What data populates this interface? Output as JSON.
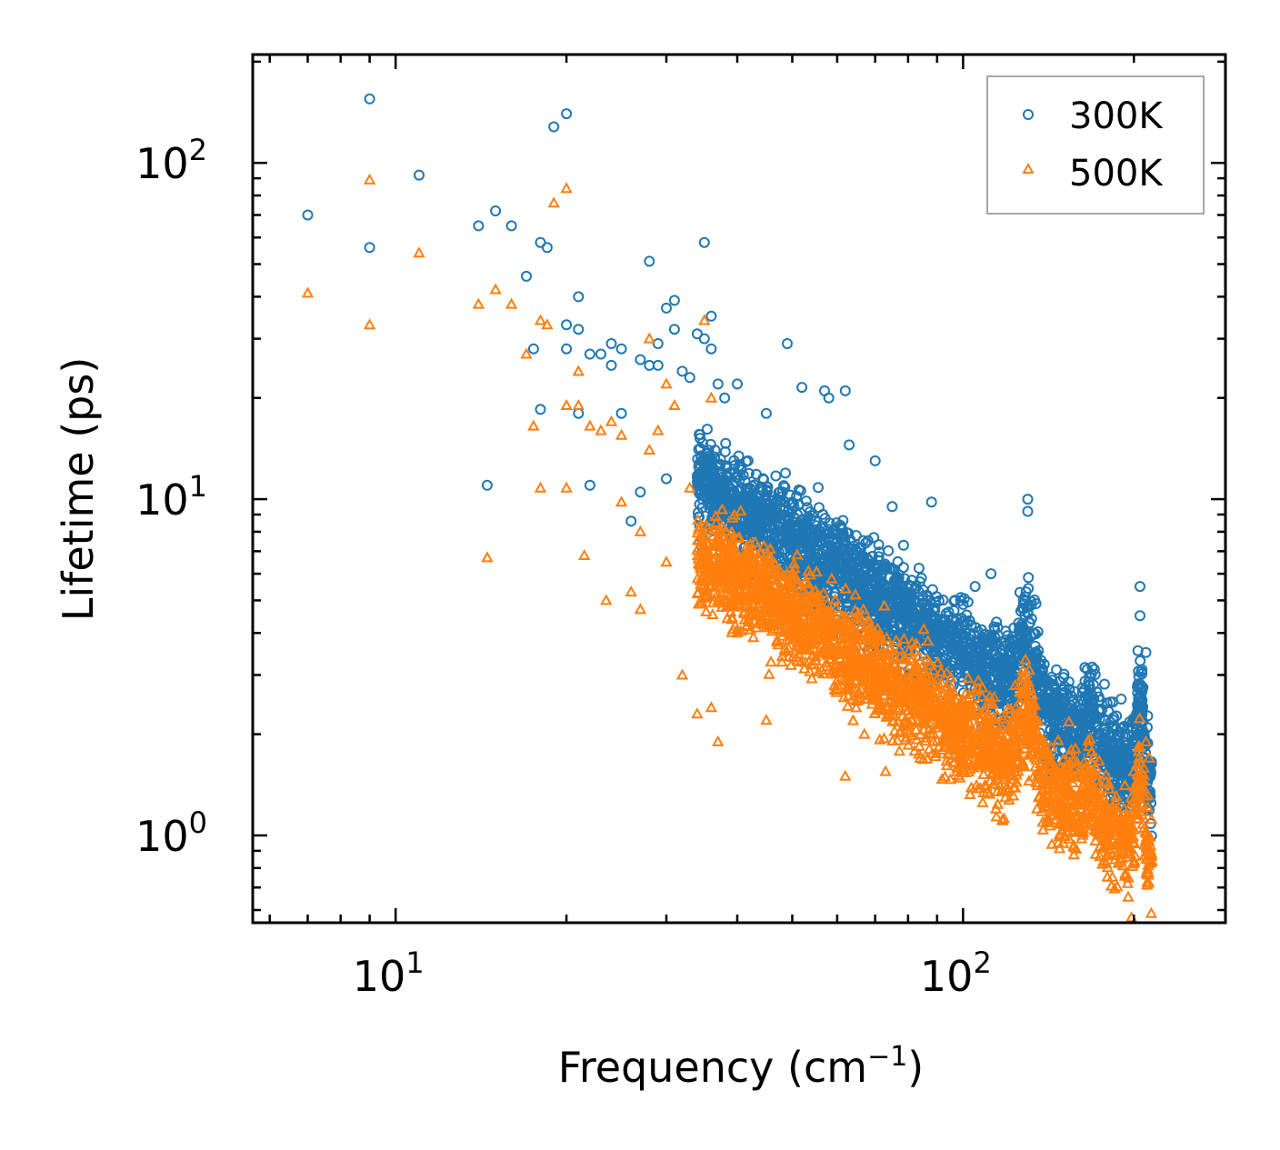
{
  "chart_data": {
    "type": "scatter",
    "xscale": "log",
    "yscale": "log",
    "xlabel": "Frequency (cm",
    "xlabel_sup": "−1",
    "xlabel_end": ")",
    "ylabel": "Lifetime (ps)",
    "xlim": [
      5.6,
      290
    ],
    "ylim": [
      0.55,
      210
    ],
    "xticks": [
      {
        "value": 10,
        "base": "10",
        "exp": "1"
      },
      {
        "value": 100,
        "base": "10",
        "exp": "2"
      }
    ],
    "yticks": [
      {
        "value": 1,
        "base": "10",
        "exp": "0"
      },
      {
        "value": 10,
        "base": "10",
        "exp": "1"
      },
      {
        "value": 100,
        "base": "10",
        "exp": "2"
      }
    ],
    "legend": {
      "position": "top-right"
    },
    "series": [
      {
        "name": "300K",
        "marker": "circle",
        "color": "#1f77b4",
        "points": [
          [
            7,
            70
          ],
          [
            9,
            56
          ],
          [
            9,
            155
          ],
          [
            11,
            92
          ],
          [
            14,
            65
          ],
          [
            14.5,
            11
          ],
          [
            15,
            72
          ],
          [
            16,
            65
          ],
          [
            17,
            46
          ],
          [
            17.5,
            28
          ],
          [
            18,
            58
          ],
          [
            18,
            18.5
          ],
          [
            18.5,
            56
          ],
          [
            19,
            128
          ],
          [
            20,
            140
          ],
          [
            20,
            33
          ],
          [
            20,
            28
          ],
          [
            21,
            40
          ],
          [
            21,
            32
          ],
          [
            21,
            18
          ],
          [
            22,
            27
          ],
          [
            22,
            11
          ],
          [
            23,
            27
          ],
          [
            24,
            29
          ],
          [
            24,
            25
          ],
          [
            25,
            28
          ],
          [
            25,
            18
          ],
          [
            26,
            8.6
          ],
          [
            27,
            26
          ],
          [
            27,
            10.5
          ],
          [
            28,
            25
          ],
          [
            28,
            51
          ],
          [
            29,
            29
          ],
          [
            29,
            25
          ],
          [
            30,
            37
          ],
          [
            30,
            11.5
          ],
          [
            31,
            32
          ],
          [
            31,
            39
          ],
          [
            32,
            24
          ],
          [
            33,
            23
          ],
          [
            34,
            31
          ],
          [
            35,
            30
          ],
          [
            35,
            58
          ],
          [
            36,
            35
          ],
          [
            36,
            28
          ],
          [
            37,
            22
          ],
          [
            38,
            20
          ],
          [
            40,
            22
          ],
          [
            45,
            18
          ],
          [
            49,
            29
          ],
          [
            52,
            21.5
          ],
          [
            57,
            21
          ],
          [
            58,
            20
          ],
          [
            62,
            21
          ],
          [
            63,
            14.5
          ],
          [
            70,
            13
          ],
          [
            75,
            9.5
          ],
          [
            88,
            9.8
          ],
          [
            105,
            5.5
          ],
          [
            112,
            6
          ],
          [
            130,
            10
          ],
          [
            130,
            9.2
          ],
          [
            205,
            5.5
          ],
          [
            205,
            4.5
          ],
          [
            210,
            3.5
          ]
        ]
      },
      {
        "name": "500K",
        "marker": "triangle",
        "color": "#ff7f0e",
        "points": [
          [
            7,
            41
          ],
          [
            9,
            89
          ],
          [
            9,
            33
          ],
          [
            11,
            54
          ],
          [
            14,
            38
          ],
          [
            14.5,
            6.7
          ],
          [
            15,
            42
          ],
          [
            16,
            38
          ],
          [
            17,
            27
          ],
          [
            17.5,
            16.5
          ],
          [
            18,
            34
          ],
          [
            18,
            10.8
          ],
          [
            18.5,
            33
          ],
          [
            19,
            76
          ],
          [
            20,
            84
          ],
          [
            20,
            19
          ],
          [
            20,
            10.8
          ],
          [
            21,
            24
          ],
          [
            21,
            19
          ],
          [
            21.5,
            6.8
          ],
          [
            22,
            16.5
          ],
          [
            23,
            16
          ],
          [
            23.5,
            5
          ],
          [
            24,
            17
          ],
          [
            25,
            9.8
          ],
          [
            25,
            15.5
          ],
          [
            26,
            5.3
          ],
          [
            27,
            8
          ],
          [
            27,
            4.7
          ],
          [
            28,
            14
          ],
          [
            28,
            30
          ],
          [
            29,
            16
          ],
          [
            30,
            6.5
          ],
          [
            30,
            22
          ],
          [
            31,
            19
          ],
          [
            32,
            3
          ],
          [
            33,
            10.8
          ],
          [
            34,
            2.3
          ],
          [
            35,
            34
          ],
          [
            36,
            2.4
          ],
          [
            36,
            20
          ],
          [
            37,
            1.9
          ],
          [
            40,
            4
          ],
          [
            45,
            2.2
          ],
          [
            55,
            3.4
          ],
          [
            62,
            1.5
          ],
          [
            67,
            2
          ],
          [
            73,
            1.55
          ],
          [
            88,
            2.9
          ],
          [
            100,
            1.6
          ],
          [
            120,
            1.35
          ],
          [
            135,
            1.2
          ],
          [
            150,
            1.4
          ],
          [
            170,
            1.25
          ],
          [
            185,
            1.0
          ],
          [
            195,
            0.72
          ],
          [
            198,
            0.57
          ],
          [
            205,
            1.5
          ],
          [
            210,
            1.9
          ],
          [
            213,
            1.7
          ]
        ]
      }
    ]
  }
}
